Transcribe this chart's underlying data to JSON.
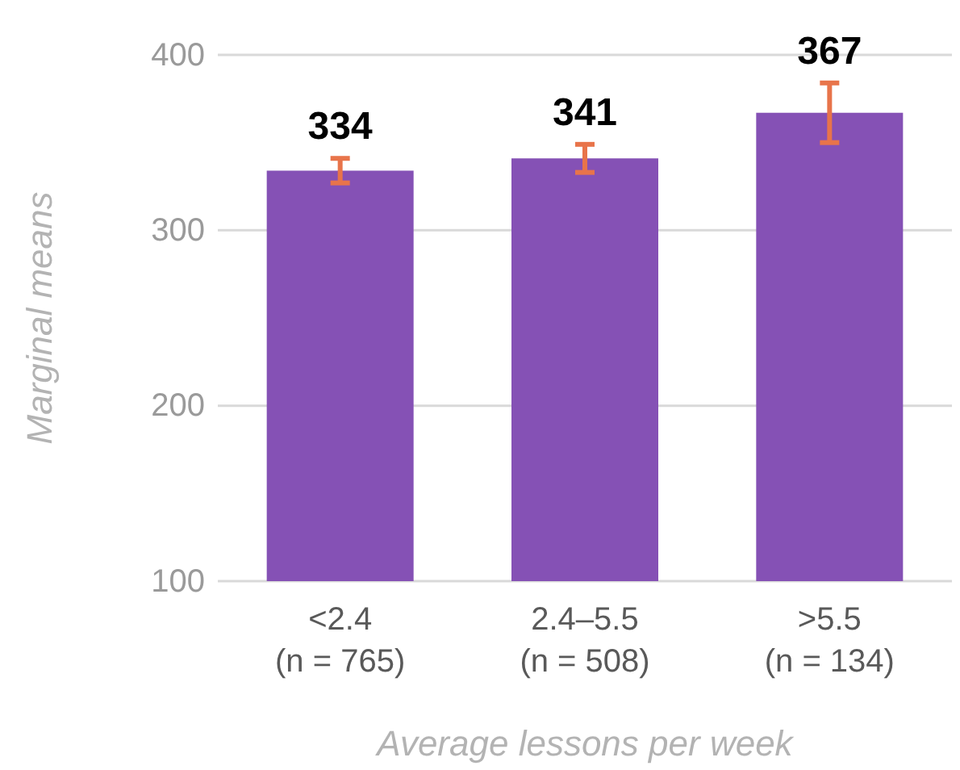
{
  "chart_data": {
    "type": "bar",
    "xlabel": "Average lessons per week",
    "ylabel": "Marginal means",
    "categories": [
      "<2.4\n(n = 765)",
      "2.4–5.5\n(n = 508)",
      ">5.5\n(n = 134)"
    ],
    "values": [
      334,
      341,
      367
    ],
    "color": "#8551b5",
    "errors": [
      7,
      8,
      17
    ],
    "ylim": [
      100,
      400
    ],
    "yticks": [
      100,
      200,
      300,
      400
    ],
    "grid": "y",
    "data_labels": true
  }
}
